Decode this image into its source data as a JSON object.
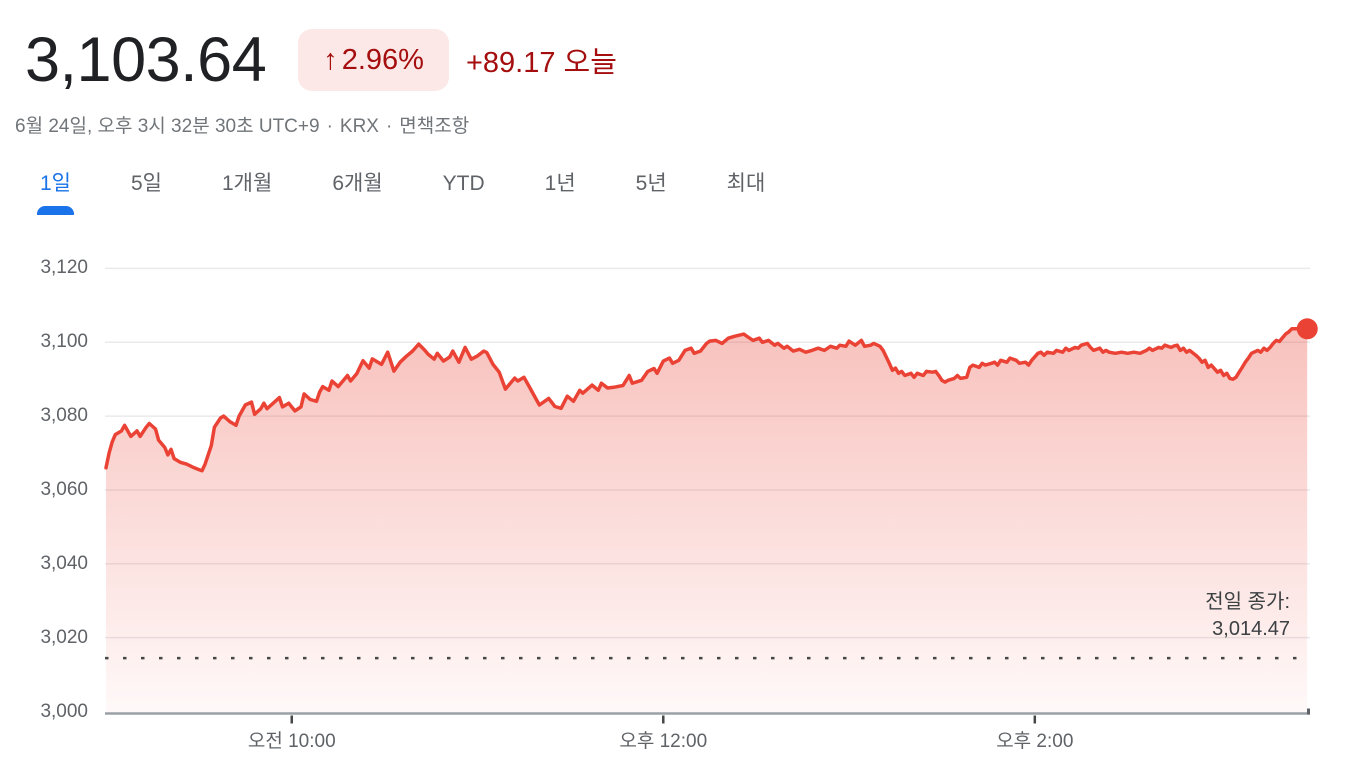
{
  "header": {
    "price": "3,103.64",
    "badge_arrow": "↑",
    "badge_value": "2.96%",
    "change_text": "+89.17 오늘",
    "timestamp": "6월 24일, 오후 3시 32분 30초 UTC+9",
    "exchange": "KRX",
    "dot": "·",
    "disclaimer": "면책조항"
  },
  "tabs": [
    {
      "label": "1일",
      "selected": true
    },
    {
      "label": "5일",
      "selected": false
    },
    {
      "label": "1개월",
      "selected": false
    },
    {
      "label": "6개월",
      "selected": false
    },
    {
      "label": "YTD",
      "selected": false
    },
    {
      "label": "1년",
      "selected": false
    },
    {
      "label": "5년",
      "selected": false
    },
    {
      "label": "최대",
      "selected": false
    }
  ],
  "colors": {
    "line_red": "#ea4335",
    "text_red": "#a50e0e",
    "badge_bg": "#fce8e6",
    "tab_blue": "#1a73e8",
    "grid_gray": "#e9eaec",
    "axis_gray": "#9aa0a6",
    "tick_gray": "#444746",
    "label_gray": "#5f6368"
  },
  "chart_data": {
    "type": "area",
    "ylabel": "",
    "xlabel": "",
    "ylim": [
      3000,
      3120
    ],
    "grid": true,
    "prev_close": 3014.47,
    "prev_close_label": "전일 종가:",
    "prev_close_value_label": "3,014.47",
    "last_value": 3103.64,
    "y_ticks": [
      {
        "value": 3000,
        "label": "3,000"
      },
      {
        "value": 3020,
        "label": "3,020"
      },
      {
        "value": 3040,
        "label": "3,040"
      },
      {
        "value": 3060,
        "label": "3,060"
      },
      {
        "value": 3080,
        "label": "3,080"
      },
      {
        "value": 3100,
        "label": "3,100"
      },
      {
        "value": 3120,
        "label": "3,120"
      }
    ],
    "x_ticks": [
      {
        "minutes": 60,
        "label": "오전 10:00"
      },
      {
        "minutes": 180,
        "label": "오후 12:00"
      },
      {
        "minutes": 300,
        "label": "오후 2:00"
      }
    ],
    "x_unit": "minutes since 09:00 KST",
    "series": [
      [
        0,
        3066
      ],
      [
        1,
        3070
      ],
      [
        2,
        3073
      ],
      [
        3,
        3075
      ],
      [
        5,
        3076
      ],
      [
        6,
        3077.5
      ],
      [
        8,
        3074.5
      ],
      [
        10,
        3076
      ],
      [
        11,
        3074.5
      ],
      [
        13,
        3077
      ],
      [
        14,
        3078
      ],
      [
        16,
        3076.5
      ],
      [
        17,
        3073.5
      ],
      [
        19,
        3071.5
      ],
      [
        20,
        3069.5
      ],
      [
        21,
        3071
      ],
      [
        22,
        3068.5
      ],
      [
        24,
        3067.5
      ],
      [
        26,
        3067
      ],
      [
        28,
        3066.2
      ],
      [
        30,
        3065.5
      ],
      [
        31,
        3065.2
      ],
      [
        32,
        3067
      ],
      [
        34,
        3072
      ],
      [
        35,
        3077
      ],
      [
        37,
        3079.5
      ],
      [
        38,
        3080
      ],
      [
        40,
        3078.5
      ],
      [
        42,
        3077.5
      ],
      [
        43,
        3080
      ],
      [
        45,
        3083
      ],
      [
        47,
        3083.8
      ],
      [
        48,
        3080.5
      ],
      [
        50,
        3082
      ],
      [
        51,
        3083.5
      ],
      [
        52,
        3082
      ],
      [
        54,
        3083.5
      ],
      [
        56,
        3085
      ],
      [
        57,
        3082.5
      ],
      [
        59,
        3083.5
      ],
      [
        61,
        3081.4
      ],
      [
        63,
        3082.5
      ],
      [
        64,
        3086
      ],
      [
        66,
        3084.5
      ],
      [
        68,
        3084
      ],
      [
        69,
        3086.5
      ],
      [
        70,
        3088
      ],
      [
        72,
        3087
      ],
      [
        73,
        3089.5
      ],
      [
        75,
        3088
      ],
      [
        76,
        3089
      ],
      [
        78,
        3091
      ],
      [
        79,
        3089.5
      ],
      [
        81,
        3091.5
      ],
      [
        83,
        3095
      ],
      [
        85,
        3093
      ],
      [
        86,
        3095.5
      ],
      [
        89,
        3094
      ],
      [
        91,
        3097.3
      ],
      [
        93,
        3092.2
      ],
      [
        95,
        3094.6
      ],
      [
        97,
        3096.2
      ],
      [
        99,
        3097.6
      ],
      [
        101,
        3099.5
      ],
      [
        103,
        3097.8
      ],
      [
        104,
        3096.8
      ],
      [
        106,
        3095.4
      ],
      [
        107,
        3097
      ],
      [
        109,
        3094.9
      ],
      [
        111,
        3096
      ],
      [
        112,
        3097.6
      ],
      [
        114,
        3094.6
      ],
      [
        116,
        3098.6
      ],
      [
        118,
        3095.4
      ],
      [
        120,
        3096.3
      ],
      [
        122,
        3097.6
      ],
      [
        123,
        3097.2
      ],
      [
        125,
        3094
      ],
      [
        127,
        3091.9
      ],
      [
        129,
        3087.3
      ],
      [
        131,
        3089.3
      ],
      [
        132,
        3090.3
      ],
      [
        133,
        3089.5
      ],
      [
        135,
        3090.5
      ],
      [
        137,
        3087.5
      ],
      [
        139,
        3084.5
      ],
      [
        140,
        3083
      ],
      [
        143,
        3084.8
      ],
      [
        145,
        3082.6
      ],
      [
        147,
        3082.1
      ],
      [
        149,
        3085.4
      ],
      [
        151,
        3084
      ],
      [
        153,
        3087
      ],
      [
        154,
        3086.2
      ],
      [
        157,
        3088.4
      ],
      [
        159,
        3087
      ],
      [
        160,
        3088.9
      ],
      [
        162,
        3087.6
      ],
      [
        164,
        3087.8
      ],
      [
        167,
        3088.3
      ],
      [
        169,
        3091
      ],
      [
        170,
        3088.9
      ],
      [
        173,
        3089.7
      ],
      [
        175,
        3092.1
      ],
      [
        177,
        3092.9
      ],
      [
        178,
        3091.6
      ],
      [
        180,
        3094.9
      ],
      [
        182,
        3095.7
      ],
      [
        183,
        3094.3
      ],
      [
        185,
        3095.1
      ],
      [
        187,
        3097.8
      ],
      [
        189,
        3098.4
      ],
      [
        190,
        3097
      ],
      [
        192,
        3097.6
      ],
      [
        194,
        3099.7
      ],
      [
        195,
        3100.3
      ],
      [
        197,
        3100.5
      ],
      [
        199,
        3099.7
      ],
      [
        201,
        3101.1
      ],
      [
        203,
        3101.6
      ],
      [
        206,
        3102.2
      ],
      [
        207,
        3101.6
      ],
      [
        209,
        3100.5
      ],
      [
        211,
        3101.1
      ],
      [
        212,
        3100
      ],
      [
        214,
        3100.5
      ],
      [
        216,
        3099.2
      ],
      [
        217,
        3099.7
      ],
      [
        219,
        3098.4
      ],
      [
        220,
        3098.9
      ],
      [
        222,
        3097.6
      ],
      [
        224,
        3098.1
      ],
      [
        226,
        3097.3
      ],
      [
        228,
        3097.8
      ],
      [
        230,
        3098.4
      ],
      [
        232,
        3097.8
      ],
      [
        234,
        3098.9
      ],
      [
        236,
        3098.4
      ],
      [
        237,
        3099.2
      ],
      [
        239,
        3098.9
      ],
      [
        240,
        3100.3
      ],
      [
        242,
        3099.2
      ],
      [
        244,
        3100.5
      ],
      [
        245,
        3098.9
      ],
      [
        247,
        3099.2
      ],
      [
        248,
        3099.7
      ],
      [
        250,
        3098.9
      ],
      [
        251,
        3097.8
      ],
      [
        253,
        3094.3
      ],
      [
        254,
        3092.4
      ],
      [
        255,
        3093
      ],
      [
        256,
        3091.6
      ],
      [
        257,
        3092.1
      ],
      [
        258,
        3091
      ],
      [
        260,
        3091.6
      ],
      [
        261,
        3090.5
      ],
      [
        262,
        3091.6
      ],
      [
        264,
        3091
      ],
      [
        265,
        3092.1
      ],
      [
        267,
        3091.9
      ],
      [
        268,
        3092.1
      ],
      [
        269,
        3091
      ],
      [
        270,
        3089.7
      ],
      [
        271,
        3089.2
      ],
      [
        272,
        3089.7
      ],
      [
        274,
        3090.2
      ],
      [
        275,
        3091
      ],
      [
        276,
        3090.2
      ],
      [
        278,
        3090.5
      ],
      [
        279,
        3093.2
      ],
      [
        280,
        3093.8
      ],
      [
        282,
        3093.2
      ],
      [
        283,
        3094.3
      ],
      [
        284,
        3093.8
      ],
      [
        286,
        3094.3
      ],
      [
        287,
        3094.6
      ],
      [
        288,
        3093.8
      ],
      [
        289,
        3095.1
      ],
      [
        291,
        3094.6
      ],
      [
        292,
        3095.7
      ],
      [
        294,
        3095.1
      ],
      [
        295,
        3094.3
      ],
      [
        297,
        3094.6
      ],
      [
        298,
        3093.8
      ],
      [
        299,
        3095.1
      ],
      [
        301,
        3097
      ],
      [
        302,
        3097.3
      ],
      [
        303,
        3096.5
      ],
      [
        304,
        3097.3
      ],
      [
        306,
        3097
      ],
      [
        307,
        3097.8
      ],
      [
        309,
        3097.3
      ],
      [
        310,
        3098.4
      ],
      [
        311,
        3097.8
      ],
      [
        313,
        3098.6
      ],
      [
        314,
        3098.4
      ],
      [
        315,
        3099.2
      ],
      [
        317,
        3099.7
      ],
      [
        318,
        3098.6
      ],
      [
        319,
        3097.8
      ],
      [
        321,
        3098.4
      ],
      [
        322,
        3097.3
      ],
      [
        323,
        3097.8
      ],
      [
        324,
        3097.3
      ],
      [
        326,
        3097
      ],
      [
        328,
        3097.3
      ],
      [
        330,
        3097
      ],
      [
        332,
        3097.3
      ],
      [
        334,
        3097
      ],
      [
        336,
        3097.8
      ],
      [
        337,
        3098.4
      ],
      [
        338,
        3097.8
      ],
      [
        340,
        3098.6
      ],
      [
        341,
        3098.4
      ],
      [
        342,
        3099.2
      ],
      [
        344,
        3098.6
      ],
      [
        345,
        3099
      ],
      [
        346,
        3099.2
      ],
      [
        347,
        3097.8
      ],
      [
        348,
        3098.4
      ],
      [
        349,
        3097.3
      ],
      [
        350,
        3097.8
      ],
      [
        352,
        3096.5
      ],
      [
        353,
        3095.7
      ],
      [
        354,
        3094.6
      ],
      [
        355,
        3095.1
      ],
      [
        356,
        3093.2
      ],
      [
        357,
        3093.8
      ],
      [
        359,
        3091.9
      ],
      [
        360,
        3092.4
      ],
      [
        361,
        3091
      ],
      [
        362,
        3091.6
      ],
      [
        363,
        3090.2
      ],
      [
        364,
        3090
      ],
      [
        365,
        3090.5
      ],
      [
        366,
        3091.9
      ],
      [
        367,
        3093.2
      ],
      [
        368,
        3094.6
      ],
      [
        369,
        3095.7
      ],
      [
        370,
        3097
      ],
      [
        372,
        3097.8
      ],
      [
        373,
        3097.3
      ],
      [
        374,
        3098.4
      ],
      [
        375,
        3097.8
      ],
      [
        376,
        3098.6
      ],
      [
        377,
        3099.7
      ],
      [
        378,
        3100.5
      ],
      [
        379,
        3100.2
      ],
      [
        380,
        3101.2
      ],
      [
        381,
        3102.2
      ],
      [
        382,
        3102.8
      ],
      [
        383,
        3103.64
      ],
      [
        385,
        3103.64
      ],
      [
        388,
        3103.64
      ]
    ]
  }
}
